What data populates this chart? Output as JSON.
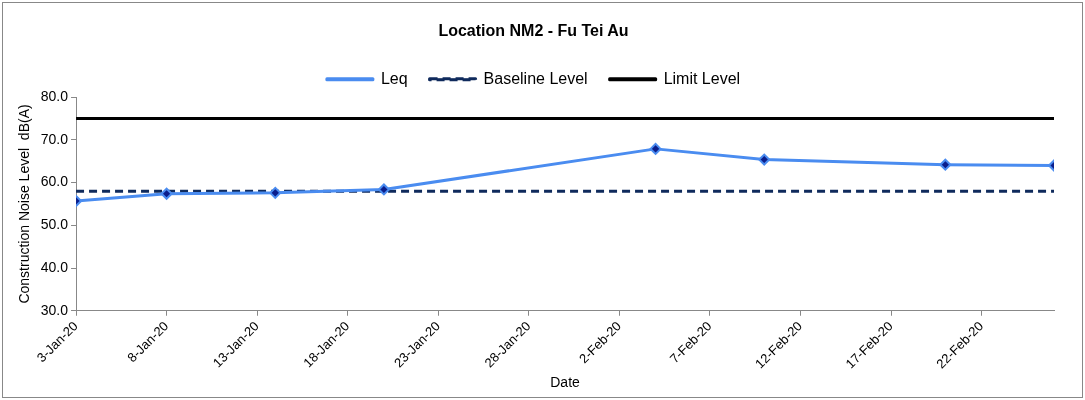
{
  "chart_data": {
    "type": "line",
    "title": "Location NM2 - Fu Tei Au",
    "xlabel": "Date",
    "ylabel": "Construction Noise Level  dB(A)",
    "xlim": [
      "--01-03",
      "--02-26"
    ],
    "xticks": [
      {
        "value": "--01-03",
        "label": "3-Jan-20"
      },
      {
        "value": "--01-08",
        "label": "8-Jan-20"
      },
      {
        "value": "--01-13",
        "label": "13-Jan-20"
      },
      {
        "value": "--01-18",
        "label": "18-Jan-20"
      },
      {
        "value": "--01-23",
        "label": "23-Jan-20"
      },
      {
        "value": "--01-28",
        "label": "28-Jan-20"
      },
      {
        "value": "--02-02",
        "label": "2-Feb-20"
      },
      {
        "value": "--02-07",
        "label": "7-Feb-20"
      },
      {
        "value": "--02-12",
        "label": "12-Feb-20"
      },
      {
        "value": "--02-17",
        "label": "17-Feb-20"
      },
      {
        "value": "--02-22",
        "label": "22-Feb-20"
      }
    ],
    "ylim": [
      30,
      80
    ],
    "yticks": [
      {
        "value": 30,
        "label": "30.0"
      },
      {
        "value": 40,
        "label": "40.0"
      },
      {
        "value": 50,
        "label": "50.0"
      },
      {
        "value": 60,
        "label": "60.0"
      },
      {
        "value": 70,
        "label": "70.0"
      },
      {
        "value": 80,
        "label": "80.0"
      }
    ],
    "grid": false,
    "legend": "top",
    "series": [
      {
        "name": "Leq",
        "color": "#4a8cf0",
        "marker": "diamond",
        "line_style": "solid",
        "x": [
          "--01-03",
          "--01-08",
          "--01-14",
          "--01-20",
          "--02-04",
          "--02-10",
          "--02-20",
          "--02-26"
        ],
        "values": [
          55.7,
          57.4,
          57.6,
          58.4,
          67.9,
          65.4,
          64.2,
          64.0
        ]
      },
      {
        "name": "Baseline Level",
        "color": "#0f2a5c",
        "marker": "none",
        "line_style": "dashed",
        "x": [
          "--01-03",
          "--02-26"
        ],
        "values": [
          58.0,
          58.0
        ]
      },
      {
        "name": "Limit Level",
        "color": "#000000",
        "marker": "none",
        "line_style": "solid",
        "x": [
          "--01-03",
          "--02-26"
        ],
        "values": [
          75,
          75
        ]
      }
    ]
  }
}
